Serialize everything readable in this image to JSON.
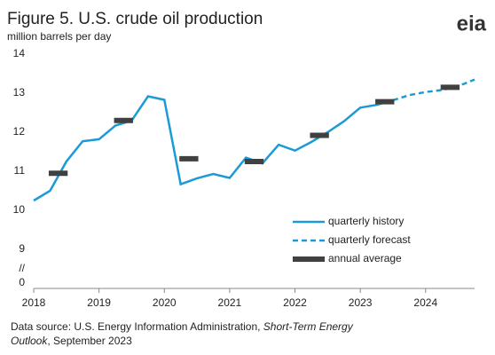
{
  "chart_data": {
    "type": "line",
    "title": "Figure 5. U.S. crude oil production",
    "subtitle": "million barrels per day",
    "logo": "eia",
    "source": [
      "Data source: U.S. Energy Information Administration, ",
      "Short-Term Energy",
      "Outlook",
      ", September 2023"
    ],
    "x": [
      2018,
      2018.25,
      2018.5,
      2018.75,
      2019,
      2019.25,
      2019.5,
      2019.75,
      2020,
      2020.25,
      2020.5,
      2020.75,
      2021,
      2021.25,
      2021.5,
      2021.75,
      2022,
      2022.25,
      2022.5,
      2022.75,
      2023,
      2023.25,
      2023.5,
      2023.75,
      2024,
      2024.25,
      2024.5,
      2024.75
    ],
    "series": [
      {
        "name": "quarterly history",
        "color": "#1a9bd7",
        "dash": false,
        "values": [
          10.25,
          10.5,
          11.25,
          11.77,
          11.82,
          12.17,
          12.3,
          12.92,
          12.83,
          10.67,
          10.82,
          10.93,
          10.83,
          11.35,
          11.2,
          11.68,
          11.53,
          11.75,
          12.0,
          12.28,
          12.63,
          12.7,
          12.82,
          null,
          null,
          null,
          null,
          null
        ]
      },
      {
        "name": "quarterly forecast",
        "color": "#1a9bd7",
        "dash": true,
        "values": [
          null,
          null,
          null,
          null,
          null,
          null,
          null,
          null,
          null,
          null,
          null,
          null,
          null,
          null,
          null,
          null,
          null,
          null,
          null,
          null,
          null,
          null,
          12.82,
          12.95,
          13.03,
          13.08,
          13.18,
          13.35
        ]
      }
    ],
    "annual": {
      "name": "annual average",
      "color": "#404040",
      "x": [
        2018,
        2019,
        2020,
        2021,
        2022,
        2023,
        2024
      ],
      "values": [
        10.95,
        12.3,
        11.32,
        11.25,
        11.92,
        12.78,
        13.15
      ]
    },
    "xlim": [
      2018,
      2024.75
    ],
    "xticks": [
      2018,
      2019,
      2020,
      2021,
      2022,
      2023,
      2024
    ],
    "ylim": [
      8,
      14
    ],
    "yticks": [
      9,
      10,
      11,
      12,
      13,
      14
    ],
    "ybreak": {
      "marker": "//",
      "tick": 0
    },
    "grid": false
  }
}
